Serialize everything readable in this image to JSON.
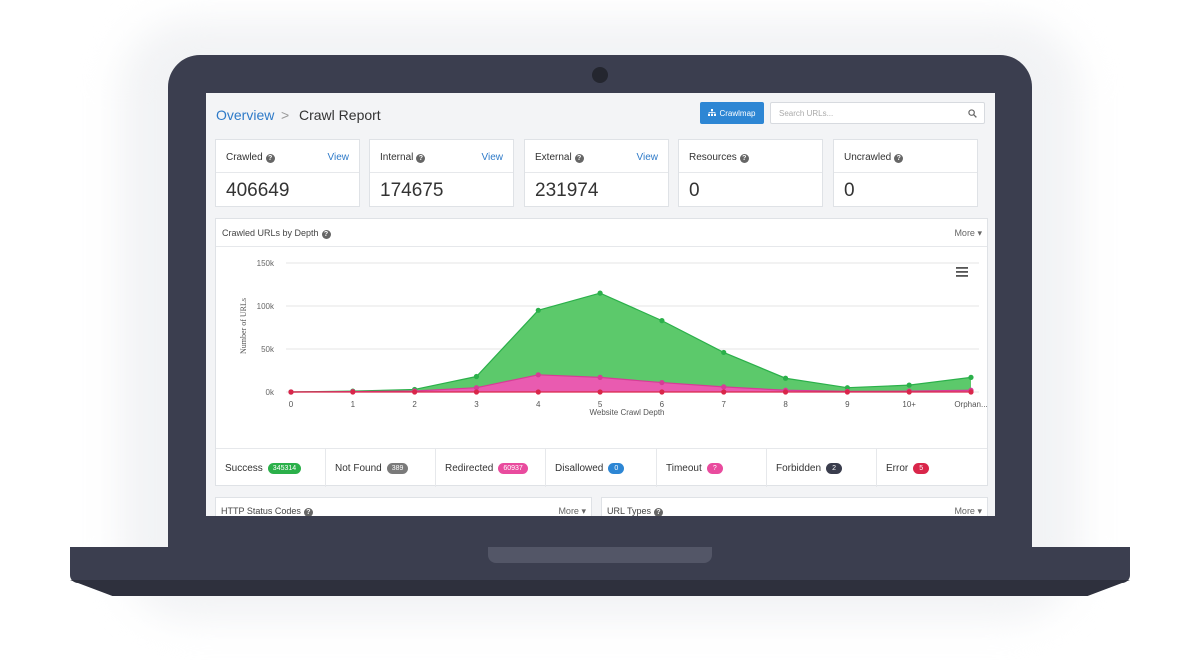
{
  "breadcrumb": {
    "root": "Overview",
    "separator": ">",
    "current": "Crawl Report"
  },
  "toolbar": {
    "crawlmap_label": "Crawlmap",
    "crawlmap_icon": "sitemap-icon",
    "search_placeholder": "Search URLs...",
    "search_icon": "search-icon"
  },
  "cards": [
    {
      "label": "Crawled",
      "value": "406649",
      "link": "View"
    },
    {
      "label": "Internal",
      "value": "174675",
      "link": "View"
    },
    {
      "label": "External",
      "value": "231974",
      "link": "View"
    },
    {
      "label": "Resources",
      "value": "0",
      "link": ""
    },
    {
      "label": "Uncrawled",
      "value": "0",
      "link": ""
    }
  ],
  "help_glyph": "?",
  "chart_panel": {
    "title": "Crawled URLs by Depth",
    "more_label": "More"
  },
  "chart_data": {
    "type": "area",
    "categories": [
      "0",
      "1",
      "2",
      "3",
      "4",
      "5",
      "6",
      "7",
      "8",
      "9",
      "10+",
      "Orphan..."
    ],
    "xlabel": "Website Crawl Depth",
    "ylabel": "Number of URLs",
    "ylim": [
      0,
      150000
    ],
    "yticks": [
      "0k",
      "50k",
      "100k",
      "150k"
    ],
    "grid": true,
    "series": [
      {
        "key": "success",
        "values": [
          0,
          1000,
          3000,
          18000,
          95000,
          115000,
          83000,
          46000,
          16000,
          5000,
          8000,
          17000
        ],
        "color": "#5cc96b",
        "line_color": "#2bb04a"
      },
      {
        "key": "redirected",
        "values": [
          0,
          400,
          1200,
          5000,
          20000,
          17000,
          11000,
          6000,
          2000,
          800,
          1000,
          2000
        ],
        "color": "#e95bb0",
        "line_color": "#d63c96"
      },
      {
        "key": "error",
        "values": [
          0,
          0,
          0,
          0,
          0,
          0,
          0,
          0,
          0,
          0,
          0,
          0
        ],
        "color": "#d9264a",
        "line_color": "#d9264a"
      }
    ]
  },
  "status_row": [
    {
      "label": "Success",
      "count": "345314",
      "color": "#2bb04a"
    },
    {
      "label": "Not Found",
      "count": "389",
      "color": "#7a7a7a"
    },
    {
      "label": "Redirected",
      "count": "60937",
      "color": "#e94b9e"
    },
    {
      "label": "Disallowed",
      "count": "0",
      "color": "#2d86d4"
    },
    {
      "label": "Timeout",
      "count": "?",
      "color": "#e94b9e"
    },
    {
      "label": "Forbidden",
      "count": "2",
      "color": "#3a3d4d"
    },
    {
      "label": "Error",
      "count": "5",
      "color": "#d9264a"
    }
  ],
  "bottom_panels": [
    {
      "title": "HTTP Status Codes",
      "more_label": "More"
    },
    {
      "title": "URL Types",
      "more_label": "More"
    }
  ]
}
